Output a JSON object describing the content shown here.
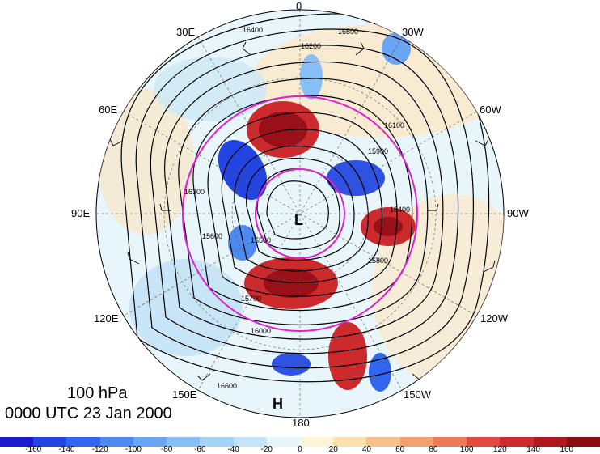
{
  "map": {
    "level": "100 hPa",
    "time": "0000 UTC 23 Jan 2000",
    "lon_labels": [
      "0",
      "30W",
      "60W",
      "90W",
      "120W",
      "150W",
      "180",
      "150E",
      "120E",
      "90E",
      "60E",
      "30E"
    ],
    "lows": [
      "L"
    ],
    "highs": [
      "H"
    ],
    "contour_labels": [
      "16400",
      "16500",
      "16200",
      "16100",
      "16300",
      "16000",
      "15900",
      "15800",
      "15700",
      "15600",
      "15500",
      "15400",
      "16600"
    ],
    "colors": {
      "magenta_ring": "#e020d0",
      "contour": "#000000"
    }
  },
  "colorbar": {
    "ticks": [
      "-160",
      "-140",
      "-120",
      "-100",
      "-80",
      "-60",
      "-40",
      "-20",
      "0",
      "20",
      "40",
      "60",
      "80",
      "100",
      "120",
      "140",
      "160"
    ],
    "colors": [
      "#1a1ad0",
      "#2244e0",
      "#3366ee",
      "#4d8af0",
      "#6aa6f4",
      "#86c0f6",
      "#a4d4f8",
      "#c4e4fa",
      "#e6f4fc",
      "#fff6d8",
      "#fde0b0",
      "#f8c08a",
      "#f4a070",
      "#ee7a56",
      "#e24a40",
      "#cc2a2c",
      "#b01820",
      "#8a0c14"
    ]
  }
}
